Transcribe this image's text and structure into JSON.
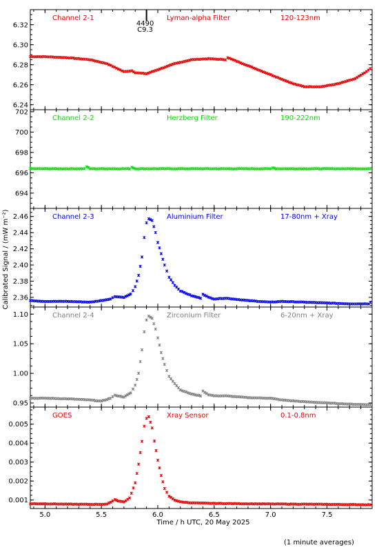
{
  "chart_data": {
    "type": "scatter",
    "xlabel": "Time / h UTC, 20 May 2025",
    "ylabel": "Calibrated Signal / (mW m⁻²)",
    "xlim": [
      4.87,
      7.9
    ],
    "x_ticks": [
      "5.0",
      "5.5",
      "6.0",
      "6.5",
      "7.0",
      "7.5"
    ],
    "footer": "(1 minute averages)",
    "flare_marker": {
      "x": 5.9,
      "label_top": "4490",
      "label_bottom": "C9.3"
    },
    "panels": [
      {
        "channel": "Channel 2-1",
        "filter": "Lyman-alpha Filter",
        "band": "120-123nm",
        "color": "#e00000",
        "ylim": [
          6.235,
          6.335
        ],
        "yticks": [
          "6.24",
          "6.26",
          "6.28",
          "6.30",
          "6.32"
        ],
        "ytick_values": [
          6.24,
          6.26,
          6.28,
          6.3,
          6.32
        ],
        "series": [
          {
            "x": [
              4.87,
              5.0,
              5.2,
              5.4,
              5.55,
              5.7,
              5.77,
              5.8,
              5.9,
              6.0,
              6.15,
              6.3,
              6.45,
              6.6,
              6.62,
              6.8,
              7.0,
              7.2,
              7.3,
              7.45,
              7.6,
              7.75,
              7.85,
              7.9
            ],
            "y": [
              6.288,
              6.288,
              6.287,
              6.285,
              6.281,
              6.273,
              6.274,
              6.272,
              6.271,
              6.275,
              6.281,
              6.285,
              6.286,
              6.285,
              6.287,
              6.279,
              6.27,
              6.261,
              6.258,
              6.258,
              6.261,
              6.266,
              6.273,
              6.278
            ]
          }
        ]
      },
      {
        "channel": "Channel 2-2",
        "filter": "Herzberg Filter",
        "band": "190-222nm",
        "color": "#00e000",
        "ylim": [
          692.5,
          702.2
        ],
        "yticks": [
          "694",
          "696",
          "698",
          "700",
          "702"
        ],
        "ytick_values": [
          694,
          696,
          698,
          700,
          702
        ],
        "series": [
          {
            "x": [
              4.87,
              5.35,
              5.37,
              5.4,
              5.75,
              5.77,
              5.8,
              7.0,
              7.02,
              7.05,
              7.9
            ],
            "y": [
              696.4,
              696.4,
              696.6,
              696.4,
              696.4,
              696.55,
              696.4,
              696.4,
              696.5,
              696.4,
              696.4
            ]
          }
        ]
      },
      {
        "channel": "Channel 2-3",
        "filter": "Aluminium Filter",
        "band": "17-80nm + Xray",
        "color": "#0000e0",
        "ylim": [
          2.348,
          2.47
        ],
        "yticks": [
          "2.36",
          "2.38",
          "2.40",
          "2.42",
          "2.44",
          "2.46"
        ],
        "ytick_values": [
          2.36,
          2.38,
          2.4,
          2.42,
          2.44,
          2.46
        ],
        "series": [
          {
            "x": [
              4.87,
              5.0,
              5.2,
              5.4,
              5.5,
              5.58,
              5.62,
              5.7,
              5.76,
              5.8,
              5.83,
              5.86,
              5.88,
              5.9,
              5.92,
              5.95,
              5.98,
              6.0,
              6.03,
              6.06,
              6.1,
              6.15,
              6.2,
              6.3,
              6.38,
              6.4,
              6.45,
              6.5,
              6.6,
              6.8,
              7.0,
              7.1,
              7.3,
              7.5,
              7.7,
              7.87,
              7.9
            ],
            "y": [
              2.356,
              2.355,
              2.355,
              2.354,
              2.356,
              2.358,
              2.361,
              2.36,
              2.364,
              2.373,
              2.387,
              2.41,
              2.434,
              2.452,
              2.457,
              2.455,
              2.44,
              2.428,
              2.414,
              2.4,
              2.385,
              2.375,
              2.368,
              2.362,
              2.359,
              2.364,
              2.36,
              2.358,
              2.359,
              2.356,
              2.354,
              2.355,
              2.354,
              2.353,
              2.352,
              2.352,
              2.356
            ]
          }
        ]
      },
      {
        "channel": "Channel 2-4",
        "filter": "Zirconium Filter",
        "band": "6-20nm + Xray",
        "color": "#808080",
        "ylim": [
          0.943,
          1.112
        ],
        "yticks": [
          "0.95",
          "1.00",
          "1.05",
          "1.10"
        ],
        "ytick_values": [
          0.95,
          1.0,
          1.05,
          1.1
        ],
        "series": [
          {
            "x": [
              4.87,
              5.0,
              5.2,
              5.4,
              5.5,
              5.58,
              5.62,
              5.7,
              5.76,
              5.8,
              5.83,
              5.86,
              5.88,
              5.9,
              5.92,
              5.95,
              5.98,
              6.0,
              6.03,
              6.06,
              6.1,
              6.15,
              6.2,
              6.3,
              6.38,
              6.4,
              6.45,
              6.5,
              6.6,
              6.8,
              7.0,
              7.1,
              7.3,
              7.5,
              7.7,
              7.9
            ],
            "y": [
              0.958,
              0.958,
              0.957,
              0.955,
              0.953,
              0.958,
              0.963,
              0.96,
              0.967,
              0.98,
              1.0,
              1.04,
              1.07,
              1.09,
              1.097,
              1.093,
              1.075,
              1.06,
              1.035,
              1.015,
              0.995,
              0.983,
              0.972,
              0.965,
              0.962,
              0.97,
              0.964,
              0.962,
              0.962,
              0.959,
              0.958,
              0.955,
              0.952,
              0.95,
              0.948,
              0.947
            ]
          }
        ]
      },
      {
        "channel": "GOES",
        "filter": "Xray Sensor",
        "band": "0.1-0.8nm",
        "color": "#e00000",
        "ylim": [
          0.00055,
          0.0059
        ],
        "yticks": [
          "0.001",
          "0.002",
          "0.003",
          "0.004",
          "0.005"
        ],
        "ytick_values": [
          0.001,
          0.002,
          0.003,
          0.004,
          0.005
        ],
        "series": [
          {
            "x": [
              4.87,
              5.0,
              5.2,
              5.4,
              5.55,
              5.6,
              5.62,
              5.65,
              5.7,
              5.75,
              5.8,
              5.83,
              5.86,
              5.88,
              5.9,
              5.92,
              5.95,
              5.97,
              6.0,
              6.03,
              6.06,
              6.1,
              6.15,
              6.2,
              6.3,
              6.5,
              6.8,
              7.0,
              7.3,
              7.5,
              7.7,
              7.9
            ],
            "y": [
              0.0008,
              0.0008,
              0.00078,
              0.00077,
              0.00078,
              0.00095,
              0.00102,
              0.00095,
              0.0009,
              0.0011,
              0.0019,
              0.0029,
              0.0041,
              0.0049,
              0.0053,
              0.0054,
              0.0048,
              0.0041,
              0.0031,
              0.0023,
              0.0016,
              0.0012,
              0.001,
              0.0009,
              0.00085,
              0.00082,
              0.0008,
              0.00079,
              0.00078,
              0.00077,
              0.00076,
              0.00075
            ]
          }
        ]
      }
    ]
  }
}
